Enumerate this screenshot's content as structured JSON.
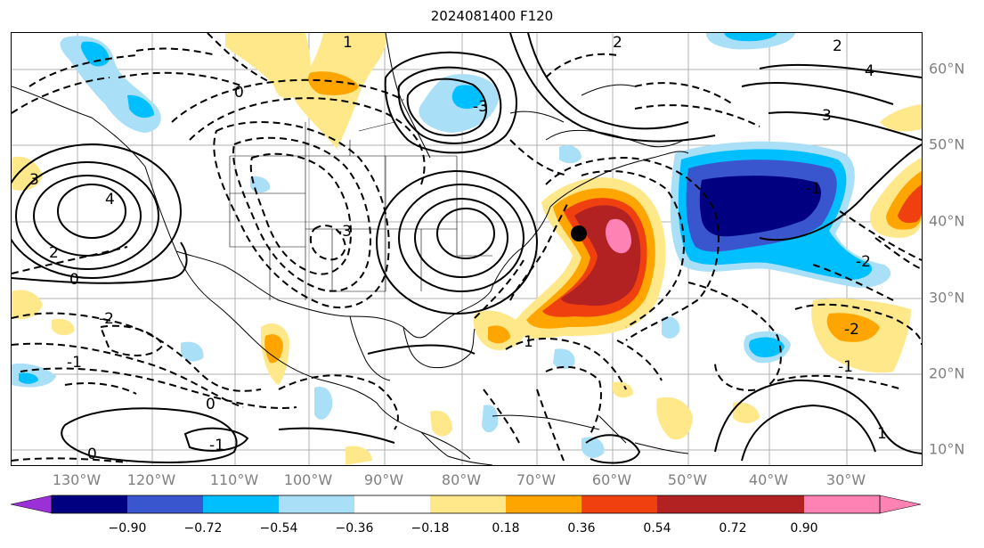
{
  "title": "2024081400 F120",
  "storm_marker": "storm-center-dot",
  "lon_labels": [
    "130°W",
    "120°W",
    "110°W",
    "100°W",
    "90°W",
    "80°W",
    "70°W",
    "60°W",
    "50°W",
    "40°W",
    "30°W"
  ],
  "lat_labels": [
    "60°N",
    "50°N",
    "40°N",
    "30°N",
    "20°N",
    "10°N"
  ],
  "colorbar": {
    "colors": [
      "#9b30d6",
      "#000080",
      "#3a56cf",
      "#00bfff",
      "#aadff8",
      "#ffffff",
      "#ffe88a",
      "#ffa500",
      "#f04010",
      "#b22222",
      "#ff82b4"
    ],
    "labels": [
      "−0.90",
      "−0.72",
      "−0.54",
      "−0.36",
      "−0.18",
      "0.18",
      "0.36",
      "0.54",
      "0.72",
      "0.90"
    ]
  },
  "contour_labels": [
    "0",
    "2",
    "3",
    "4",
    "-1",
    "-2",
    "-3",
    "1",
    "0",
    "2",
    "3",
    "4",
    "-1",
    "-2",
    "-3",
    "1",
    "0",
    "2",
    "-1",
    "0",
    "-1",
    "-2",
    "1"
  ]
}
